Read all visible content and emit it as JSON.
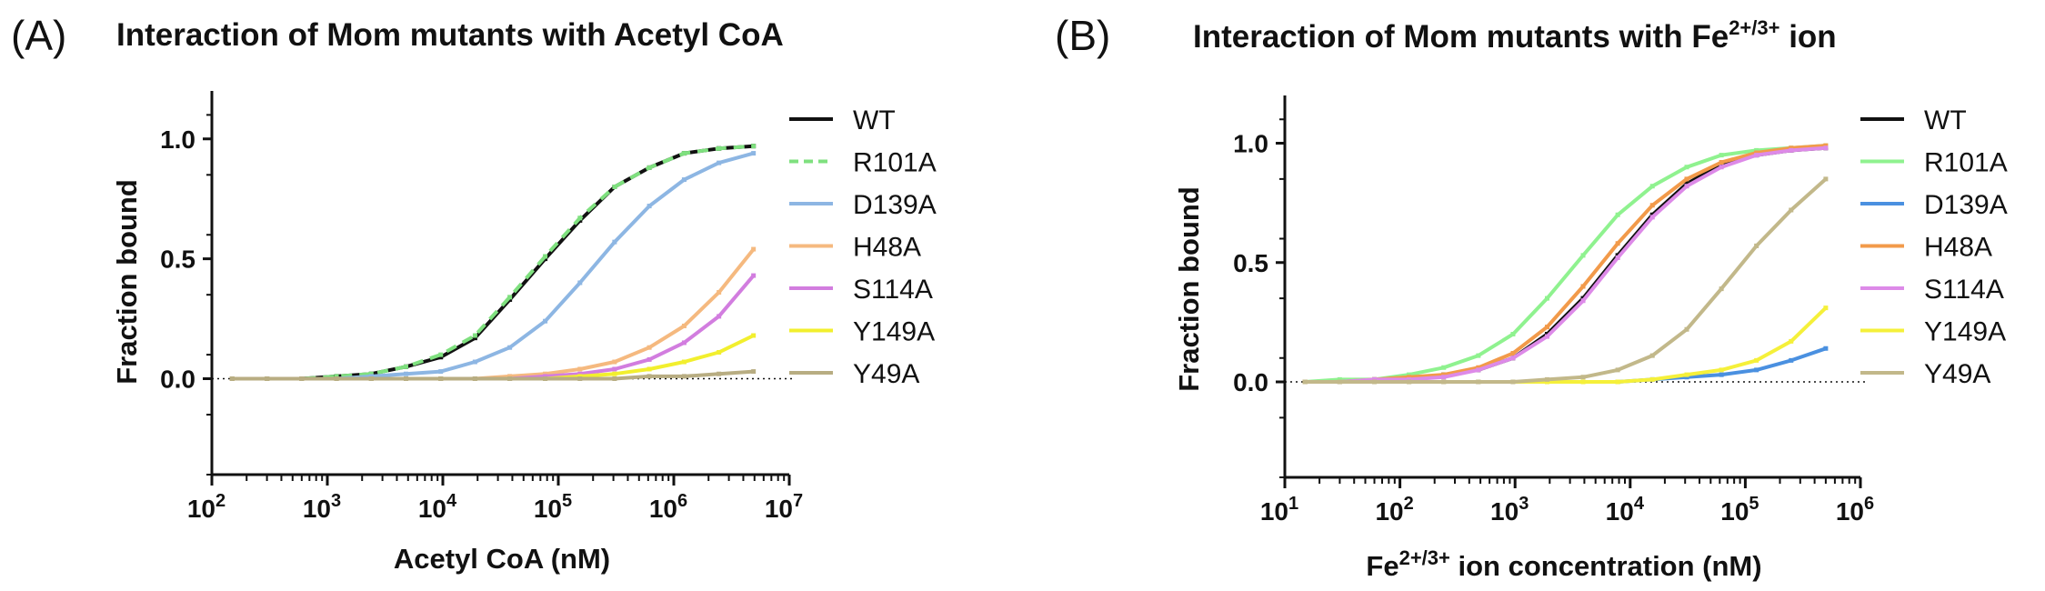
{
  "chart_data": [
    {
      "type": "line",
      "panel_label": "(A)",
      "title": "Interaction of Mom mutants with Acetyl CoA",
      "xlabel": "Acetyl CoA (nM)",
      "ylabel": "Fraction bound",
      "x_scale": "log",
      "xlim": [
        100,
        10000000
      ],
      "ylim": [
        -0.4,
        1.2
      ],
      "x_ticks": [
        {
          "base": "10",
          "exp": "2"
        },
        {
          "base": "10",
          "exp": "3"
        },
        {
          "base": "10",
          "exp": "4"
        },
        {
          "base": "10",
          "exp": "5"
        },
        {
          "base": "10",
          "exp": "6"
        },
        {
          "base": "10",
          "exp": "7"
        }
      ],
      "y_ticks": [
        "0.0",
        "0.5",
        "1.0"
      ],
      "zero_line": "dotted",
      "legend_position": "right",
      "series": [
        {
          "name": "WT",
          "color": "#111111",
          "dash": "none",
          "x": [
            150,
            300,
            600,
            1200,
            2400,
            4800,
            9600,
            19000,
            38000,
            77000,
            154000,
            307000,
            614000,
            1230000,
            2460000,
            4900000
          ],
          "y": [
            0.0,
            0.0,
            0.0,
            0.01,
            0.02,
            0.05,
            0.09,
            0.17,
            0.33,
            0.5,
            0.66,
            0.8,
            0.88,
            0.94,
            0.96,
            0.97
          ]
        },
        {
          "name": "R101A",
          "color": "#7fe07f",
          "dash": "dashed",
          "x": [
            150,
            300,
            600,
            1200,
            2400,
            4800,
            9600,
            19000,
            38000,
            77000,
            154000,
            307000,
            614000,
            1230000,
            2460000,
            4900000
          ],
          "y": [
            0.0,
            0.0,
            0.0,
            0.01,
            0.02,
            0.05,
            0.1,
            0.18,
            0.34,
            0.51,
            0.67,
            0.8,
            0.88,
            0.94,
            0.96,
            0.97
          ]
        },
        {
          "name": "D139A",
          "color": "#8db6e3",
          "dash": "none",
          "x": [
            150,
            300,
            600,
            1200,
            2400,
            4800,
            9600,
            19000,
            38000,
            77000,
            154000,
            307000,
            614000,
            1230000,
            2460000,
            4900000
          ],
          "y": [
            0.0,
            0.0,
            0.0,
            0.0,
            0.01,
            0.02,
            0.03,
            0.07,
            0.13,
            0.24,
            0.4,
            0.57,
            0.72,
            0.83,
            0.9,
            0.94
          ]
        },
        {
          "name": "H48A",
          "color": "#f5b97f",
          "dash": "none",
          "x": [
            150,
            300,
            600,
            1200,
            2400,
            4800,
            9600,
            19000,
            38000,
            77000,
            154000,
            307000,
            614000,
            1230000,
            2460000,
            4900000
          ],
          "y": [
            0.0,
            0.0,
            0.0,
            0.0,
            0.0,
            0.0,
            0.0,
            0.0,
            0.01,
            0.02,
            0.04,
            0.07,
            0.13,
            0.22,
            0.36,
            0.54
          ]
        },
        {
          "name": "S114A",
          "color": "#d27ddf",
          "dash": "none",
          "x": [
            150,
            300,
            600,
            1200,
            2400,
            4800,
            9600,
            19000,
            38000,
            77000,
            154000,
            307000,
            614000,
            1230000,
            2460000,
            4900000
          ],
          "y": [
            0.0,
            0.0,
            0.0,
            0.0,
            0.0,
            0.0,
            0.0,
            0.0,
            0.0,
            0.01,
            0.02,
            0.04,
            0.08,
            0.15,
            0.26,
            0.43
          ]
        },
        {
          "name": "Y149A",
          "color": "#f2ef2e",
          "dash": "none",
          "x": [
            150,
            300,
            600,
            1200,
            2400,
            4800,
            9600,
            19000,
            38000,
            77000,
            154000,
            307000,
            614000,
            1230000,
            2460000,
            4900000
          ],
          "y": [
            0.0,
            0.0,
            0.0,
            0.0,
            0.0,
            0.0,
            0.0,
            0.0,
            0.0,
            0.0,
            0.01,
            0.02,
            0.04,
            0.07,
            0.11,
            0.18
          ]
        },
        {
          "name": "Y49A",
          "color": "#b8ad82",
          "dash": "none",
          "x": [
            150,
            300,
            600,
            1200,
            2400,
            4800,
            9600,
            19000,
            38000,
            77000,
            154000,
            307000,
            614000,
            1230000,
            2460000,
            4900000
          ],
          "y": [
            0.0,
            0.0,
            0.0,
            0.0,
            0.0,
            0.0,
            0.0,
            0.0,
            0.0,
            0.0,
            0.0,
            0.0,
            0.01,
            0.01,
            0.02,
            0.03
          ]
        }
      ]
    },
    {
      "type": "line",
      "panel_label": "(B)",
      "title": "Interaction of Mom mutants with Fe",
      "title_sup": "2+/3+",
      "title_suffix": " ion",
      "xlabel": "Fe",
      "xlabel_sup": "2+/3+",
      "xlabel_suffix": " ion concentration (nM)",
      "ylabel": "Fraction bound",
      "x_scale": "log",
      "xlim": [
        10,
        1000000
      ],
      "ylim": [
        -0.4,
        1.2
      ],
      "x_ticks": [
        {
          "base": "10",
          "exp": "1"
        },
        {
          "base": "10",
          "exp": "2"
        },
        {
          "base": "10",
          "exp": "3"
        },
        {
          "base": "10",
          "exp": "4"
        },
        {
          "base": "10",
          "exp": "5"
        },
        {
          "base": "10",
          "exp": "6"
        }
      ],
      "y_ticks": [
        "0.0",
        "0.5",
        "1.0"
      ],
      "zero_line": "dotted",
      "legend_position": "right",
      "series": [
        {
          "name": "WT",
          "color": "#111111",
          "dash": "none",
          "x": [
            15,
            30,
            60,
            120,
            240,
            480,
            960,
            1900,
            3900,
            7800,
            15600,
            31000,
            62000,
            125000,
            250000,
            500000
          ],
          "y": [
            0.0,
            0.0,
            0.01,
            0.01,
            0.03,
            0.05,
            0.1,
            0.2,
            0.35,
            0.53,
            0.7,
            0.83,
            0.91,
            0.95,
            0.97,
            0.98
          ]
        },
        {
          "name": "R101A",
          "color": "#8ff28f",
          "dash": "none",
          "x": [
            15,
            30,
            60,
            120,
            240,
            480,
            960,
            1900,
            3900,
            7800,
            15600,
            31000,
            62000,
            125000,
            250000,
            500000
          ],
          "y": [
            0.0,
            0.01,
            0.01,
            0.03,
            0.06,
            0.11,
            0.2,
            0.35,
            0.53,
            0.7,
            0.82,
            0.9,
            0.95,
            0.97,
            0.98,
            0.99
          ]
        },
        {
          "name": "D139A",
          "color": "#4a90e0",
          "dash": "none",
          "x": [
            15,
            30,
            60,
            120,
            240,
            480,
            960,
            1900,
            3900,
            7800,
            15600,
            31000,
            62000,
            125000,
            250000,
            500000
          ],
          "y": [
            0.0,
            0.0,
            0.0,
            0.0,
            0.0,
            0.0,
            0.0,
            0.0,
            0.0,
            0.0,
            0.01,
            0.02,
            0.03,
            0.05,
            0.09,
            0.14
          ]
        },
        {
          "name": "H48A",
          "color": "#f29a4a",
          "dash": "none",
          "x": [
            15,
            30,
            60,
            120,
            240,
            480,
            960,
            1900,
            3900,
            7800,
            15600,
            31000,
            62000,
            125000,
            250000,
            500000
          ],
          "y": [
            0.0,
            0.0,
            0.01,
            0.02,
            0.03,
            0.06,
            0.12,
            0.23,
            0.4,
            0.58,
            0.74,
            0.85,
            0.92,
            0.96,
            0.98,
            0.99
          ]
        },
        {
          "name": "S114A",
          "color": "#dd8ae8",
          "dash": "none",
          "x": [
            15,
            30,
            60,
            120,
            240,
            480,
            960,
            1900,
            3900,
            7800,
            15600,
            31000,
            62000,
            125000,
            250000,
            500000
          ],
          "y": [
            0.0,
            0.0,
            0.01,
            0.01,
            0.02,
            0.05,
            0.1,
            0.19,
            0.34,
            0.52,
            0.69,
            0.82,
            0.9,
            0.95,
            0.97,
            0.98
          ]
        },
        {
          "name": "Y149A",
          "color": "#f5f03a",
          "dash": "none",
          "x": [
            15,
            30,
            60,
            120,
            240,
            480,
            960,
            1900,
            3900,
            7800,
            15600,
            31000,
            62000,
            125000,
            250000,
            500000
          ],
          "y": [
            0.0,
            0.0,
            0.0,
            0.0,
            0.0,
            0.0,
            0.0,
            0.0,
            0.0,
            0.0,
            0.01,
            0.03,
            0.05,
            0.09,
            0.17,
            0.31
          ]
        },
        {
          "name": "Y49A",
          "color": "#c2b88a",
          "dash": "none",
          "x": [
            15,
            30,
            60,
            120,
            240,
            480,
            960,
            1900,
            3900,
            7800,
            15600,
            31000,
            62000,
            125000,
            250000,
            500000
          ],
          "y": [
            0.0,
            0.0,
            0.0,
            0.0,
            0.0,
            0.0,
            0.0,
            0.01,
            0.02,
            0.05,
            0.11,
            0.22,
            0.39,
            0.57,
            0.72,
            0.85
          ]
        }
      ]
    }
  ]
}
